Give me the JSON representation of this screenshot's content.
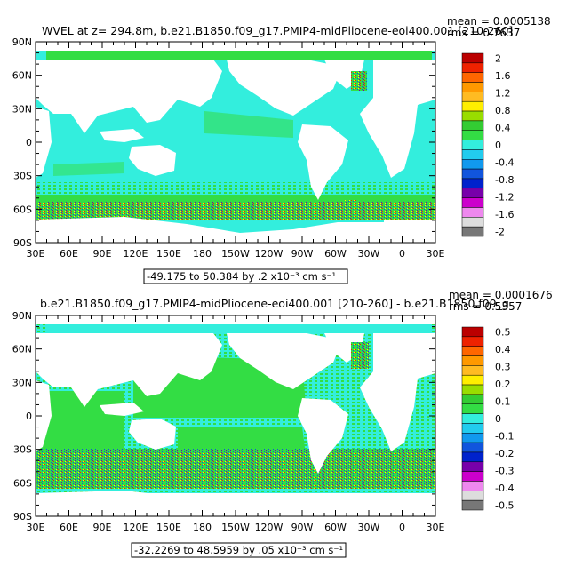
{
  "panels": [
    {
      "title": "WVEL at z= 294.8m, b.e21.B1850.f09_g17.PMIP4-midPliocene-eoi400.001 [210-260]",
      "mean_label": "mean = 0.0005138",
      "rms_label": "rms = 0.7637",
      "range_label": "-49.175 to 50.384 by .2 x10⁻³ cm s⁻¹",
      "y_ticks": [
        "90N",
        "60N",
        "30N",
        "0",
        "30S",
        "60S",
        "90S"
      ],
      "x_ticks": [
        "30E",
        "60E",
        "90E",
        "120E",
        "150E",
        "180",
        "150W",
        "120W",
        "90W",
        "60W",
        "30W",
        "0",
        "30E"
      ],
      "colorbar_labels": [
        "2",
        "1.6",
        "1.2",
        "0.8",
        "0.4",
        "0",
        "-0.4",
        "-0.8",
        "-1.2",
        "-1.6",
        "-2"
      ]
    },
    {
      "title": "b.e21.B1850.f09_g17.PMIP4-midPliocene-eoi400.001 [210-260] - b.e21.B1850.f09_g",
      "mean_label": "mean = 0.0001676",
      "rms_label": "rms = 0.5357",
      "range_label": "-32.2269 to 48.5959 by .05 x10⁻³ cm s⁻¹",
      "y_ticks": [
        "90N",
        "60N",
        "30N",
        "0",
        "30S",
        "60S",
        "90S"
      ],
      "x_ticks": [
        "30E",
        "60E",
        "90E",
        "120E",
        "150E",
        "180",
        "150W",
        "120W",
        "90W",
        "60W",
        "30W",
        "0",
        "30E"
      ],
      "colorbar_labels": [
        "0.5",
        "0.4",
        "0.3",
        "0.2",
        "0.1",
        "0",
        "-0.1",
        "-0.2",
        "-0.3",
        "-0.4",
        "-0.5"
      ]
    }
  ],
  "colors": {
    "ocean_main": "#33eedd",
    "ocean_green": "#33dd44",
    "land": "#ffffff",
    "colorbar": [
      "#bb0000",
      "#ee2200",
      "#ff6600",
      "#ff9900",
      "#ffbb22",
      "#ffee00",
      "#99dd00",
      "#33cc33",
      "#33dd44",
      "#33eedd",
      "#22ccee",
      "#1199ee",
      "#1155dd",
      "#0022cc",
      "#7700aa",
      "#cc00cc",
      "#ee88ee",
      "#dddddd",
      "#777777"
    ]
  },
  "chart_data": [
    {
      "type": "heatmap",
      "title": "WVEL at z= 294.8m, b.e21.B1850.f09_g17.PMIP4-midPliocene-eoi400.001 [210-260]",
      "variable": "WVEL",
      "depth": "294.8m",
      "mean": 0.0005138,
      "rms": 0.7637,
      "data_min": -49.175,
      "data_max": 50.384,
      "contour_interval": 0.2,
      "units": "x10^-3 cm s^-1",
      "colorbar_levels": [
        2,
        1.6,
        1.2,
        0.8,
        0.4,
        0,
        -0.4,
        -0.8,
        -1.2,
        -1.6,
        -2
      ],
      "x_axis": "longitude 30E to 30E",
      "y_axis": "latitude 90S to 90N",
      "grid": false,
      "legend_position": "right"
    },
    {
      "type": "heatmap",
      "title": "b.e21.B1850.f09_g17.PMIP4-midPliocene-eoi400.001 [210-260] - b.e21.B1850.f09_g",
      "mean": 0.0001676,
      "rms": 0.5357,
      "data_min": -32.2269,
      "data_max": 48.5959,
      "contour_interval": 0.05,
      "units": "x10^-3 cm s^-1",
      "colorbar_levels": [
        0.5,
        0.4,
        0.3,
        0.2,
        0.1,
        0,
        -0.1,
        -0.2,
        -0.3,
        -0.4,
        -0.5
      ],
      "x_axis": "longitude 30E to 30E",
      "y_axis": "latitude 90S to 90N",
      "grid": false,
      "legend_position": "right"
    }
  ]
}
